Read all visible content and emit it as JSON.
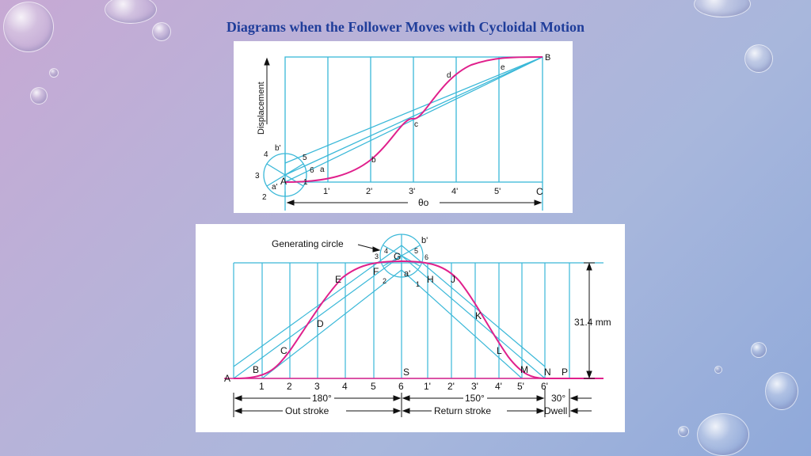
{
  "slide": {
    "title": "Diagrams when the Follower Moves with Cycloidal Motion"
  },
  "colors": {
    "grid": "#3ab8d8",
    "curve": "#e0208c",
    "text": "#111111",
    "title": "#1f3d9a"
  },
  "top_diagram": {
    "y_axis_label": "Displacement",
    "corner_end": "B",
    "corner_bottom_right": "C",
    "start_point": "A",
    "x_ticks": [
      "1'",
      "2'",
      "3'",
      "4'",
      "5'"
    ],
    "curve_points": [
      "a",
      "b",
      "c",
      "d",
      "e"
    ],
    "circle_numbers": [
      "1",
      "2",
      "3",
      "4",
      "5",
      "6"
    ],
    "circle_points": [
      "a'",
      "b'"
    ],
    "angle_label": "θo"
  },
  "bottom_diagram": {
    "generating_circle_label": "Generating circle",
    "start_point": "A",
    "rise_points": [
      "B",
      "C",
      "D",
      "E",
      "F"
    ],
    "peak_point": "G",
    "fall_points": [
      "H",
      "J",
      "K",
      "L",
      "M"
    ],
    "end_points": [
      "N",
      "P"
    ],
    "mid_base_point": "S",
    "circle_points": [
      "a'",
      "b'"
    ],
    "circle_numbers_left": [
      "1",
      "2",
      "3",
      "4"
    ],
    "circle_numbers_right": [
      "5",
      "6"
    ],
    "x_ticks_out": [
      "1",
      "2",
      "3",
      "4",
      "5",
      "6"
    ],
    "x_ticks_return": [
      "1'",
      "2'",
      "3'",
      "4'",
      "5'",
      "6'"
    ],
    "lift_label": "31.4 mm",
    "out_angle": "180°",
    "return_angle": "150°",
    "dwell_angle": "30°",
    "out_label": "Out stroke",
    "return_label": "Return stroke",
    "dwell_label": "Dwell"
  }
}
